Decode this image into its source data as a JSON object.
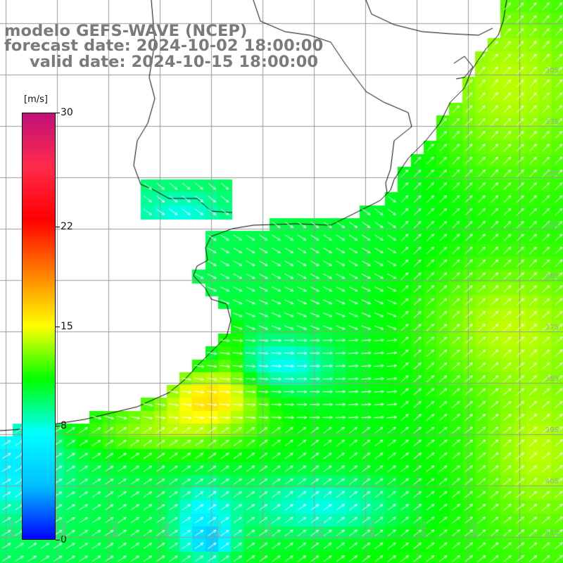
{
  "header": {
    "model_line": "modelo GEFS-WAVE (NCEP)",
    "forecast_line": "forecast date: 2024-10-02 18:00:00",
    "valid_line": "valid date: 2024-10-15 18:00:00"
  },
  "colorbar": {
    "unit": "[m/s]",
    "min": 0,
    "max": 30,
    "ticks": [
      {
        "label": "30",
        "value": 30
      },
      {
        "label": "22",
        "value": 22
      },
      {
        "label": "15",
        "value": 15
      },
      {
        "label": "8",
        "value": 8
      },
      {
        "label": "0",
        "value": 0
      }
    ],
    "colors": [
      "#0000ff",
      "#00bfff",
      "#00ffff",
      "#00ff00",
      "#ffff00",
      "#ff7f00",
      "#ff0000",
      "#ff2a4a",
      "#c0107a"
    ]
  },
  "map": {
    "land_color": "#ffffff",
    "grid_color": "#9a9a9a",
    "arrow_color": "#ffffff",
    "lat_labels": [
      "30S",
      "33S",
      "34S",
      "35S",
      "36S",
      "37S",
      "38S",
      "39S",
      "40S",
      "41S"
    ],
    "lon_labels": [
      "61W",
      "60W",
      "59W",
      "58W",
      "57W",
      "56W",
      "55W",
      "54W",
      "53W",
      "52W"
    ]
  }
}
